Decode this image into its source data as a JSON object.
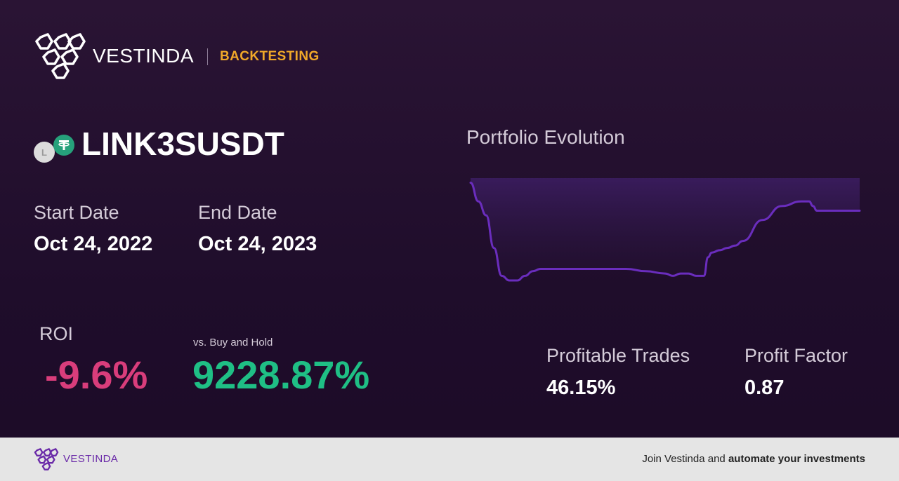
{
  "header": {
    "brand": "VESTINDA",
    "product": "BACKTESTING"
  },
  "pair": {
    "name": "LINK3SUSDT",
    "base_icon": "link-coin-icon",
    "base_letter": "L",
    "quote_icon": "tether-coin-icon"
  },
  "dates": {
    "start_label": "Start Date",
    "start_value": "Oct 24, 2022",
    "end_label": "End Date",
    "end_value": "Oct 24, 2023"
  },
  "roi": {
    "label": "ROI",
    "value": "-9.6%",
    "vs_label": "vs. Buy and Hold",
    "vs_value": "9228.87%"
  },
  "stats": {
    "profitable_trades_label": "Profitable Trades",
    "profitable_trades_value": "46.15%",
    "profit_factor_label": "Profit Factor",
    "profit_factor_value": "0.87"
  },
  "chart_data": {
    "type": "area",
    "title": "Portfolio Evolution",
    "x": [
      0,
      2,
      4,
      6,
      8,
      10,
      12,
      14,
      16,
      18,
      20,
      22,
      25,
      30,
      35,
      40,
      45,
      50,
      52,
      54,
      56,
      58,
      60,
      61,
      62,
      64,
      66,
      68,
      70,
      75,
      80,
      85,
      87,
      88,
      89,
      90,
      92,
      95,
      100
    ],
    "values": [
      100,
      92,
      86,
      72,
      60,
      58,
      58,
      60,
      62,
      63,
      63,
      63,
      63,
      63,
      63,
      63,
      62,
      61,
      60,
      61,
      61,
      60,
      60,
      68,
      70,
      71,
      72,
      73,
      75,
      84,
      90,
      92,
      92,
      90,
      88,
      88,
      88,
      88,
      88
    ],
    "ylim": [
      55,
      102
    ],
    "grid": false,
    "colors": {
      "line": "#6a2dbd",
      "fill_top": "#3a1c5e",
      "fill_bottom": "#22102f"
    }
  },
  "footer": {
    "brand": "VESTINDA",
    "cta_prefix": "Join Vestinda and ",
    "cta_bold": "automate your investments"
  },
  "colors": {
    "accent": "#f0a829",
    "negative": "#d93d7b",
    "positive": "#1fbf85",
    "brand_purple": "#6a2aa8"
  }
}
